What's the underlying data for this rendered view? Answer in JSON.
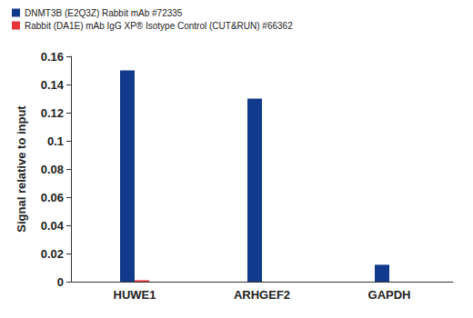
{
  "chart_data": {
    "type": "bar",
    "categories": [
      "HUWE1",
      "ARHGEF2",
      "GAPDH"
    ],
    "series": [
      {
        "name": "DNMT3B (E2Q3Z) Rabbit mAb #72335",
        "color": "#123a8c",
        "values": [
          0.15,
          0.13,
          0.012
        ]
      },
      {
        "name": "Rabbit (DA1E) mAb IgG XP® Isotype Control (CUT&RUN) #66362",
        "color": "#e8333b",
        "values": [
          0.001,
          0,
          0
        ]
      }
    ],
    "ylabel": "Signal relative to input",
    "ylim": [
      0,
      0.16
    ],
    "yticks": [
      0,
      0.02,
      0.04,
      0.06,
      0.08,
      0.1,
      0.12,
      0.14,
      0.16
    ],
    "legend": "top-left",
    "grid": false
  }
}
